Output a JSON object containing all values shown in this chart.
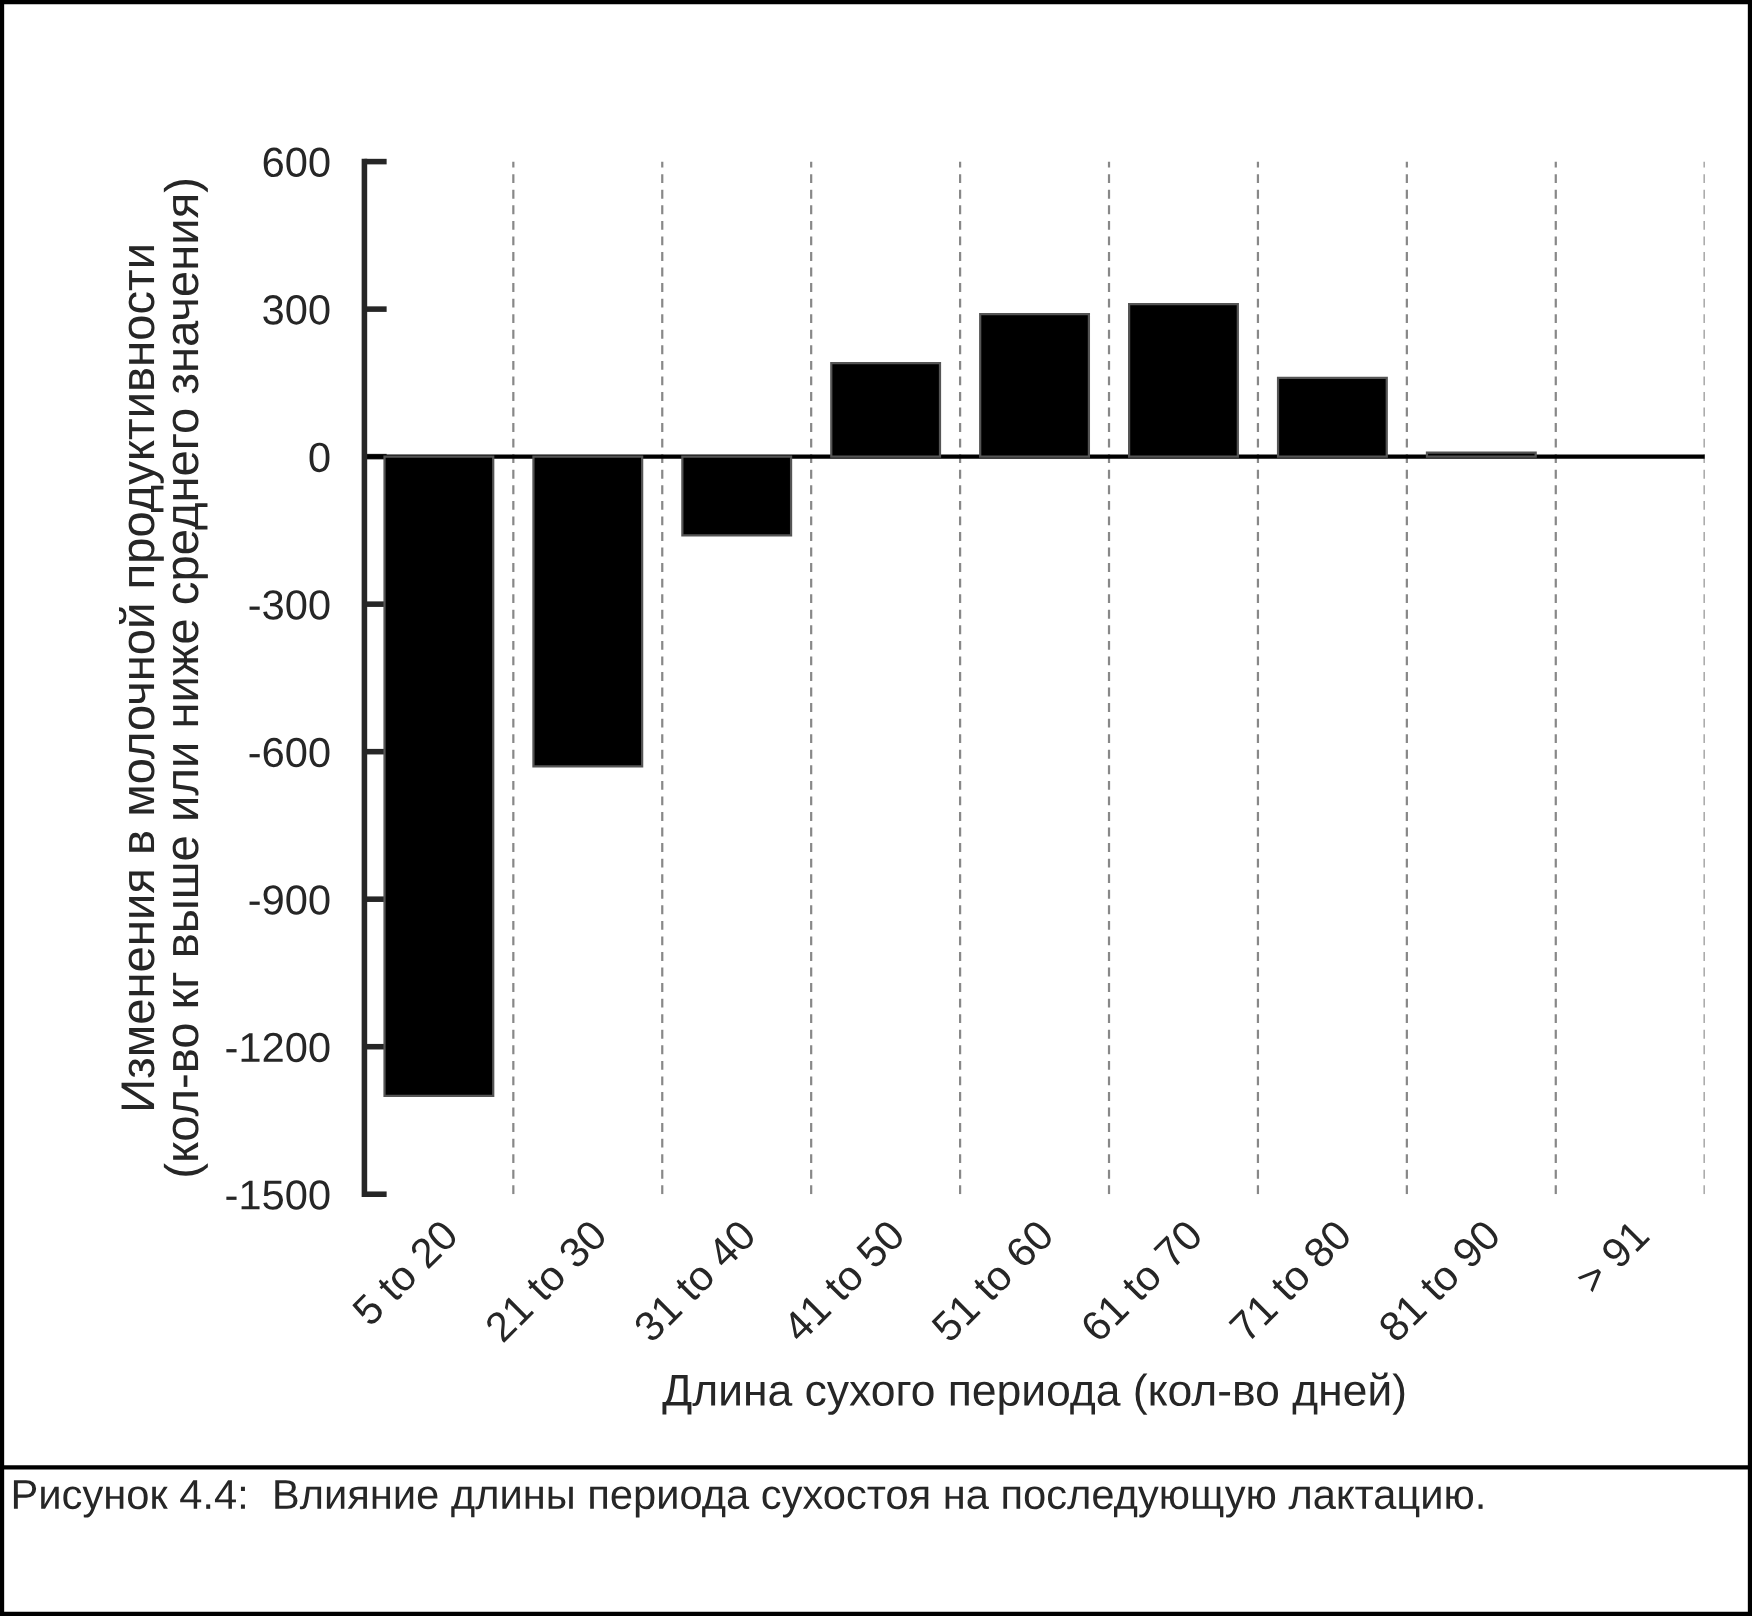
{
  "chart_data": {
    "type": "bar",
    "xlabel": "Длина сухого периода (кол-во дней)",
    "ylabel": "Изменения в молочной продуктивности\n(кол-во кг выше или ниже среднего значения)",
    "categories": [
      "5 to 20",
      "21 to 30",
      "31 to 40",
      "41 to 50",
      "51 to 60",
      "61 to 70",
      "71 to 80",
      "81 to 90",
      "> 91"
    ],
    "values": [
      -1300,
      -630,
      -160,
      190,
      290,
      310,
      160,
      8,
      null
    ],
    "color": "#000000",
    "ylim": [
      -1500,
      600
    ],
    "yticks": [
      -1500,
      -1200,
      -900,
      -600,
      -300,
      0,
      300,
      600
    ],
    "grid": "x",
    "ref_lines": [
      {
        "axis": "y",
        "value": 0,
        "color": "#000000"
      }
    ],
    "annotations": [
      "Рисунок 4.4:  Влияние длины периода сухостоя на последующую лактацию."
    ]
  }
}
